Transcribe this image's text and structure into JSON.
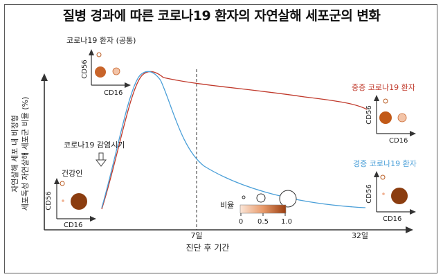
{
  "title": "질병 경과에 따른 코로나19 환자의 자연살해 세포군의 변화",
  "y_axis_label_line1": "자연살해 세포 내 비정형",
  "y_axis_label_line2": "세포독성 자연살해 세포군 비율 (%)",
  "x_axis_label": "진단 후 기간",
  "x_ticks": [
    "7일",
    "32일"
  ],
  "labels": {
    "common": "코로나19 환자 (공통)",
    "healthy": "건강인",
    "infection": "코로나19 감염시기",
    "severe": "중증 코로나19 환자",
    "mild": "경증 코로나19 환자"
  },
  "mini_plot": {
    "xlabel": "CD16",
    "ylabel": "CD56"
  },
  "legend": {
    "title": "비율",
    "ticks": [
      "0",
      "0.5",
      "1.0"
    ]
  },
  "colors": {
    "severe": "#c0392b",
    "mild": "#4a9fd8",
    "healthy_dot": "#8b3d10",
    "dark_orange": "#b85a20",
    "light_orange": "#f0b090"
  }
}
